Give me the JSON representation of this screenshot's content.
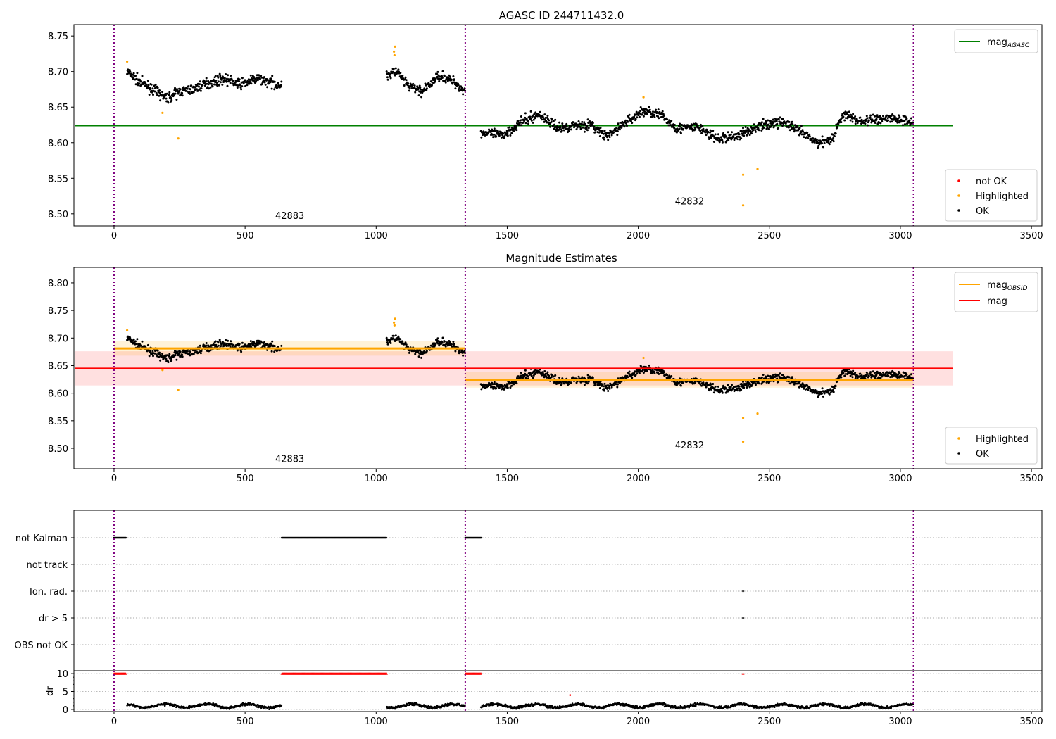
{
  "colors": {
    "ok": "#000000",
    "highlighted": "#ffa500",
    "not_ok": "#ff0000",
    "agasc": "#008000",
    "mag": "#ff0000",
    "obsid": "#ffa500",
    "obs_line": "#800080"
  },
  "chart_data": [
    {
      "type": "scatter",
      "title": "AGASC ID 244711432.0",
      "xlim": [
        -153,
        3540
      ],
      "ylim": [
        8.483,
        8.766
      ],
      "xticks": [
        0,
        500,
        1000,
        1500,
        2000,
        2500,
        3000,
        3500
      ],
      "yticks": [
        "8.50",
        "8.55",
        "8.60",
        "8.65",
        "8.70",
        "8.75"
      ],
      "hlines": [
        {
          "name": "mag_AGASC",
          "y": 8.624,
          "x": [
            -150,
            3200
          ]
        }
      ],
      "legend_top": [
        {
          "label": "mag",
          "sub": "AGASC",
          "kind": "line",
          "color": "agasc"
        }
      ],
      "legend_bottom": [
        {
          "label": "not OK",
          "color": "not_ok"
        },
        {
          "label": "Highlighted",
          "color": "highlighted"
        },
        {
          "label": "OK",
          "color": "ok"
        }
      ],
      "annotations": [
        {
          "text": "42883",
          "x": 615,
          "y": 8.493
        },
        {
          "text": "42832",
          "x": 2140,
          "y": 8.513
        }
      ]
    },
    {
      "type": "scatter",
      "title": "Magnitude Estimates",
      "xlim": [
        -153,
        3540
      ],
      "ylim": [
        8.463,
        8.828
      ],
      "xticks": [
        0,
        500,
        1000,
        1500,
        2000,
        2500,
        3000,
        3500
      ],
      "yticks": [
        "8.50",
        "8.55",
        "8.60",
        "8.65",
        "8.70",
        "8.75",
        "8.80"
      ],
      "bands": [
        {
          "color": "mag",
          "x": [
            -150,
            3200
          ],
          "y": [
            8.614,
            8.676
          ],
          "line": 8.645
        },
        {
          "color": "obsid",
          "x": [
            0,
            1340
          ],
          "y": [
            8.668,
            8.694
          ],
          "line": 8.681
        },
        {
          "color": "obsid",
          "x": [
            1340,
            3050
          ],
          "y": [
            8.61,
            8.638
          ],
          "line": 8.624
        }
      ],
      "legend_top": [
        {
          "label": "mag",
          "sub": "OBSID",
          "kind": "line",
          "color": "obsid"
        },
        {
          "label": "mag",
          "sub": "",
          "kind": "line",
          "color": "mag"
        }
      ],
      "legend_bottom": [
        {
          "label": "Highlighted",
          "color": "highlighted"
        },
        {
          "label": "OK",
          "color": "ok"
        }
      ],
      "annotations": [
        {
          "text": "42883",
          "x": 615,
          "y": 8.475
        },
        {
          "text": "42832",
          "x": 2140,
          "y": 8.5
        }
      ]
    },
    {
      "type": "scatter",
      "title": "",
      "categories": [
        "not Kalman",
        "not track",
        "Ion. rad.",
        "dr > 5",
        "OBS not OK"
      ],
      "flags": [
        {
          "row": 0,
          "ranges": [
            [
              0,
              45
            ],
            [
              640,
              1040
            ],
            [
              1340,
              1400
            ]
          ]
        },
        {
          "row": 2,
          "points": [
            2400
          ]
        },
        {
          "row": 3,
          "points": [
            2400
          ]
        }
      ]
    },
    {
      "type": "scatter",
      "ylabel": "dr",
      "ylim": [
        -0.6,
        10.8
      ],
      "yticks": [
        "0",
        "5",
        "10"
      ],
      "xticks": [
        0,
        500,
        1000,
        1500,
        2000,
        2500,
        3000,
        3500
      ],
      "capped_ranges": [
        [
          0,
          45
        ],
        [
          640,
          1040
        ],
        [
          1340,
          1400
        ]
      ],
      "capped_points": [
        2400
      ],
      "red_points": [
        [
          1740,
          4
        ]
      ],
      "typical_dr": 1.0
    }
  ],
  "obs_boundaries": [
    0,
    1340,
    3050
  ],
  "ok_trend": {
    "segments": [
      {
        "x": [
          50,
          640
        ],
        "trend": [
          [
            50,
            8.7
          ],
          [
            100,
            8.685
          ],
          [
            150,
            8.675
          ],
          [
            200,
            8.662
          ],
          [
            250,
            8.672
          ],
          [
            300,
            8.675
          ],
          [
            350,
            8.683
          ],
          [
            420,
            8.69
          ],
          [
            480,
            8.682
          ],
          [
            550,
            8.69
          ],
          [
            640,
            8.68
          ]
        ]
      },
      {
        "x": [
          1040,
          1340
        ],
        "trend": [
          [
            1040,
            8.695
          ],
          [
            1080,
            8.7
          ],
          [
            1120,
            8.68
          ],
          [
            1180,
            8.672
          ],
          [
            1240,
            8.695
          ],
          [
            1300,
            8.685
          ],
          [
            1340,
            8.672
          ]
        ]
      },
      {
        "x": [
          1400,
          3050
        ],
        "trend": [
          [
            1400,
            8.615
          ],
          [
            1480,
            8.61
          ],
          [
            1550,
            8.628
          ],
          [
            1620,
            8.64
          ],
          [
            1700,
            8.62
          ],
          [
            1760,
            8.625
          ],
          [
            1820,
            8.625
          ],
          [
            1880,
            8.608
          ],
          [
            1950,
            8.628
          ],
          [
            2020,
            8.645
          ],
          [
            2080,
            8.64
          ],
          [
            2150,
            8.62
          ],
          [
            2230,
            8.622
          ],
          [
            2300,
            8.605
          ],
          [
            2380,
            8.61
          ],
          [
            2450,
            8.622
          ],
          [
            2550,
            8.63
          ],
          [
            2620,
            8.615
          ],
          [
            2680,
            8.6
          ],
          [
            2740,
            8.605
          ],
          [
            2780,
            8.64
          ],
          [
            2850,
            8.63
          ],
          [
            2950,
            8.635
          ],
          [
            3050,
            8.63
          ]
        ]
      }
    ],
    "noise": 0.007
  },
  "highlighted": [
    [
      50,
      8.714
    ],
    [
      185,
      8.642
    ],
    [
      245,
      8.606
    ],
    [
      1068,
      8.728
    ],
    [
      1070,
      8.723
    ],
    [
      1072,
      8.735
    ],
    [
      2020,
      8.664
    ],
    [
      2400,
      8.555
    ],
    [
      2400,
      8.512
    ],
    [
      2455,
      8.563
    ]
  ]
}
